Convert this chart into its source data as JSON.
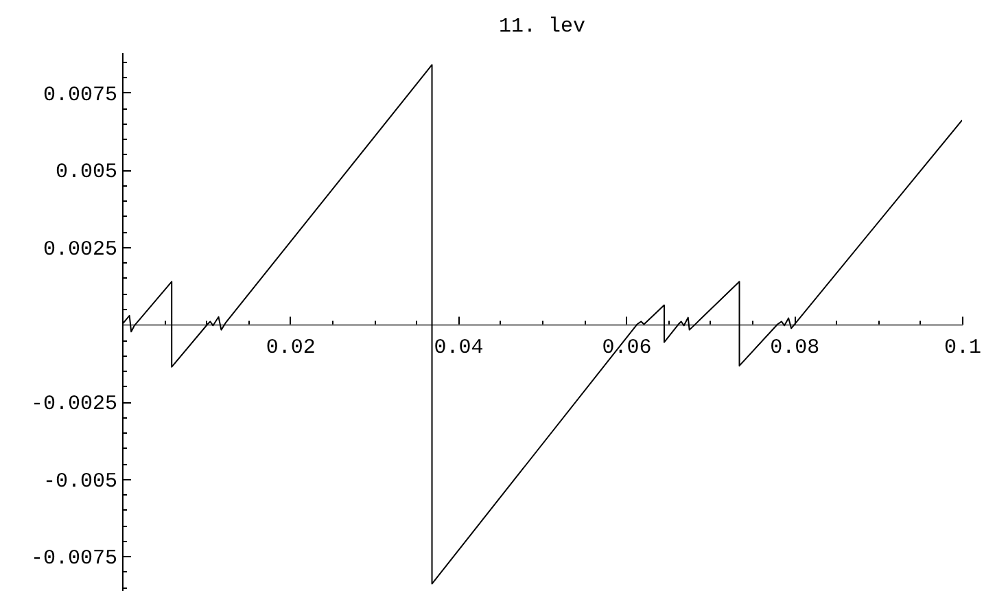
{
  "chart_data": {
    "type": "line",
    "title": "11. lev",
    "color": "#000000",
    "x": [
      0,
      0.00087,
      0.00108,
      0.00146,
      0.0059,
      0.0059,
      0.01016,
      0.01049,
      0.01082,
      0.01148,
      0.0118,
      0.0123,
      0.03689,
      0.03689,
      0.06131,
      0.0618,
      0.06213,
      0.06454,
      0.06454,
      0.06623,
      0.06656,
      0.06689,
      0.06738,
      0.06754,
      0.07349,
      0.07349,
      0.07803,
      0.07852,
      0.07885,
      0.07934,
      0.07967,
      0.1
    ],
    "values": [
      0,
      0.00028,
      -0.00024,
      -4e-05,
      0.00138,
      -0.00138,
      0,
      9e-05,
      -4e-05,
      0.00024,
      -0.00018,
      4e-05,
      0.00839,
      -0.00839,
      0,
      9e-05,
      0,
      0.00062,
      -0.00058,
      0,
      9e-05,
      -4e-05,
      0.00022,
      -0.00018,
      0.00138,
      -0.00134,
      0,
      9e-05,
      -4e-05,
      0.0002,
      -0.00013,
      0.0066
    ],
    "xlim": [
      0,
      0.1
    ],
    "ylim": [
      -0.0086,
      0.0088
    ],
    "xticks": [
      {
        "value": 0.005,
        "label": null
      },
      {
        "value": 0.01,
        "label": null
      },
      {
        "value": 0.015,
        "label": null
      },
      0.02,
      {
        "value": 0.025,
        "label": null
      },
      {
        "value": 0.03,
        "label": null
      },
      {
        "value": 0.035,
        "label": null
      },
      0.04,
      {
        "value": 0.045,
        "label": null
      },
      {
        "value": 0.05,
        "label": null
      },
      {
        "value": 0.055,
        "label": null
      },
      0.06,
      {
        "value": 0.065,
        "label": null
      },
      {
        "value": 0.07,
        "label": null
      },
      {
        "value": 0.075,
        "label": null
      },
      0.08,
      {
        "value": 0.085,
        "label": null
      },
      {
        "value": 0.09,
        "label": null
      },
      {
        "value": 0.095,
        "label": null
      },
      0.1
    ],
    "yticks": [
      {
        "value": -0.0085,
        "label": null
      },
      {
        "value": -0.008,
        "label": null
      },
      -0.0075,
      {
        "value": -0.007,
        "label": null
      },
      {
        "value": -0.0065,
        "label": null
      },
      {
        "value": -0.006,
        "label": null
      },
      {
        "value": -0.0055,
        "label": null
      },
      -0.005,
      {
        "value": -0.0045,
        "label": null
      },
      {
        "value": -0.004,
        "label": null
      },
      {
        "value": -0.0035,
        "label": null
      },
      {
        "value": -0.003,
        "label": null
      },
      -0.0025,
      {
        "value": -0.002,
        "label": null
      },
      {
        "value": -0.0015,
        "label": null
      },
      {
        "value": -0.001,
        "label": null
      },
      {
        "value": -0.0005,
        "label": null
      },
      {
        "value": 0.0005,
        "label": null
      },
      {
        "value": 0.001,
        "label": null
      },
      {
        "value": 0.0015,
        "label": null
      },
      {
        "value": 0.002,
        "label": null
      },
      0.0025,
      {
        "value": 0.003,
        "label": null
      },
      {
        "value": 0.0035,
        "label": null
      },
      {
        "value": 0.004,
        "label": null
      },
      {
        "value": 0.0045,
        "label": null
      },
      0.005,
      {
        "value": 0.0055,
        "label": null
      },
      {
        "value": 0.006,
        "label": null
      },
      {
        "value": 0.0065,
        "label": null
      },
      {
        "value": 0.007,
        "label": null
      },
      0.0075,
      {
        "value": 0.008,
        "label": null
      },
      {
        "value": 0.0085,
        "label": null
      }
    ]
  }
}
